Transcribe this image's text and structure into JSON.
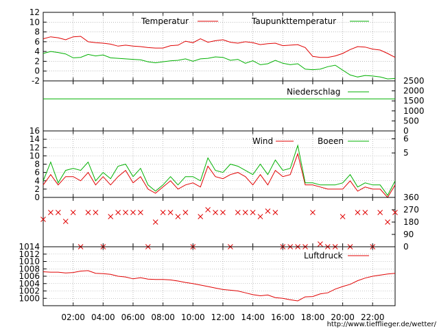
{
  "colors": {
    "red": "#e00000",
    "green": "#00b000",
    "grid": "#909090",
    "axis": "#000000"
  },
  "credit": "http://www.tiefflieger.de/wetter/",
  "time_ticks": [
    "02:00",
    "04:00",
    "06:00",
    "08:00",
    "10:00",
    "12:00",
    "14:00",
    "16:00",
    "18:00",
    "20:00",
    "22:00"
  ],
  "time_tick_hours": [
    2,
    4,
    6,
    8,
    10,
    12,
    14,
    16,
    18,
    20,
    22
  ],
  "time_range_hours": [
    0,
    23.5
  ],
  "chart_data": [
    {
      "type": "line",
      "id": "temperature",
      "ylim": [
        -2,
        12
      ],
      "yticks_left": [
        "12",
        "10",
        "8",
        "6",
        "4",
        "2",
        "0",
        "-2"
      ],
      "ytick_values_left": [
        12,
        10,
        8,
        6,
        4,
        2,
        0,
        -2
      ],
      "grid": true,
      "legend_position": "top-right",
      "x": [
        0,
        0.5,
        1,
        1.5,
        2,
        2.5,
        3,
        3.5,
        4,
        4.5,
        5,
        5.5,
        6,
        6.5,
        7,
        7.5,
        8,
        8.5,
        9,
        9.5,
        10,
        10.5,
        11,
        11.5,
        12,
        12.5,
        13,
        13.5,
        14,
        14.5,
        15,
        15.5,
        16,
        16.5,
        17,
        17.5,
        18,
        18.5,
        19,
        19.5,
        20,
        20.5,
        21,
        21.5,
        22,
        22.5,
        23,
        23.5
      ],
      "series": [
        {
          "name": "Temperatur",
          "color": "red",
          "values": [
            6.6,
            7.0,
            6.8,
            6.4,
            7.0,
            7.1,
            6.0,
            5.8,
            5.7,
            5.5,
            5.1,
            5.3,
            5.1,
            5.0,
            4.8,
            4.7,
            4.7,
            5.2,
            5.3,
            6.1,
            5.8,
            6.6,
            5.9,
            6.2,
            6.4,
            5.9,
            5.7,
            6.0,
            5.8,
            5.4,
            5.6,
            5.7,
            5.2,
            5.3,
            5.4,
            4.8,
            3.0,
            2.8,
            2.8,
            3.1,
            3.6,
            4.4,
            5.0,
            4.9,
            4.5,
            4.3,
            3.6,
            2.8
          ]
        },
        {
          "name": "Taupunkttemperatur",
          "color": "green",
          "values": [
            3.6,
            4.0,
            3.8,
            3.5,
            2.7,
            2.8,
            3.4,
            3.1,
            3.3,
            2.7,
            2.6,
            2.5,
            2.4,
            2.3,
            1.9,
            1.7,
            1.9,
            2.1,
            2.2,
            2.5,
            2.0,
            2.5,
            2.6,
            2.9,
            2.8,
            2.2,
            2.4,
            1.6,
            2.1,
            1.3,
            1.5,
            2.2,
            1.6,
            1.3,
            1.5,
            0.4,
            0.3,
            0.4,
            0.9,
            1.2,
            0.2,
            -0.8,
            -1.2,
            -0.9,
            -1.0,
            -1.2,
            -1.6,
            -1.5
          ]
        }
      ]
    },
    {
      "type": "line",
      "id": "precipitation",
      "ylim": [
        0,
        2500
      ],
      "yticks_right": [
        "2500",
        "2000",
        "1500",
        "1000",
        "500",
        "0"
      ],
      "ytick_values_right": [
        2500,
        2000,
        1500,
        1000,
        500,
        0
      ],
      "legend_position": "top-right",
      "x": [
        0,
        23.5
      ],
      "series": [
        {
          "name": "Niederschlag",
          "color": "green",
          "values": [
            1600,
            1600
          ]
        }
      ]
    },
    {
      "type": "line",
      "id": "wind",
      "ylim": [
        0,
        16
      ],
      "yticks_left": [
        "16",
        "14",
        "12",
        "10",
        "8",
        "6",
        "4",
        "2",
        "0"
      ],
      "ytick_values_left": [
        16,
        14,
        12,
        10,
        8,
        6,
        4,
        2,
        0
      ],
      "yticks_right": [
        "6",
        "5"
      ],
      "ytick_values_right": [
        14.1,
        10.7
      ],
      "grid": true,
      "legend_position": "top-right",
      "x": [
        0,
        0.5,
        1,
        1.5,
        2,
        2.5,
        3,
        3.5,
        4,
        4.5,
        5,
        5.5,
        6,
        6.5,
        7,
        7.5,
        8,
        8.5,
        9,
        9.5,
        10,
        10.5,
        11,
        11.5,
        12,
        12.5,
        13,
        13.5,
        14,
        14.5,
        15,
        15.5,
        16,
        16.5,
        17,
        17.5,
        18,
        18.5,
        19,
        19.5,
        20,
        20.5,
        21,
        21.5,
        22,
        22.5,
        23,
        23.5
      ],
      "series": [
        {
          "name": "Wind",
          "color": "red",
          "values": [
            3,
            5.5,
            3,
            5,
            5,
            4,
            6,
            3,
            5,
            3,
            5,
            6.5,
            3.5,
            5,
            2,
            1,
            2.5,
            4,
            2,
            3,
            3.5,
            2.5,
            7.5,
            5,
            4.5,
            5.5,
            6,
            5,
            3,
            5.5,
            3,
            6.5,
            5,
            5.5,
            10.5,
            3,
            3,
            2.5,
            2,
            2,
            2,
            4,
            1.5,
            2.5,
            2,
            2,
            0,
            3
          ]
        },
        {
          "name": "Boeen",
          "color": "green",
          "values": [
            4,
            8.5,
            3.5,
            6.5,
            7,
            6.5,
            8.5,
            4,
            6,
            4.5,
            7.5,
            8,
            5,
            7,
            3,
            1.5,
            3,
            5,
            3,
            5,
            5,
            4,
            9.5,
            6.5,
            6,
            8,
            7.5,
            6.5,
            5.5,
            8,
            5.5,
            9,
            6.5,
            7,
            12.5,
            3.5,
            3.5,
            3,
            3,
            3,
            3.5,
            5.5,
            2.5,
            3.5,
            3,
            3,
            0.5,
            4
          ]
        }
      ]
    },
    {
      "type": "scatter",
      "id": "wind-direction",
      "ylim": [
        0,
        360
      ],
      "yticks_right": [
        "360",
        "270",
        "180",
        "90",
        "0"
      ],
      "ytick_values_right": [
        360,
        270,
        180,
        90,
        0
      ],
      "x": [
        0,
        0.5,
        1,
        1.5,
        2,
        2.5,
        3,
        3.5,
        4,
        4.5,
        5,
        5.5,
        6,
        6.5,
        7,
        7.5,
        8,
        8.5,
        9,
        9.5,
        10,
        10.5,
        11,
        11.5,
        12,
        12.5,
        13,
        13.5,
        14,
        14.5,
        15,
        15.5,
        16,
        16.5,
        17,
        17.5,
        18,
        18.5,
        19,
        19.5,
        20,
        20.5,
        21,
        21.5,
        22,
        22.5,
        23,
        23.5
      ],
      "series": [
        {
          "color": "red",
          "values": [
            200,
            250,
            250,
            185,
            250,
            0,
            250,
            250,
            0,
            220,
            250,
            250,
            250,
            250,
            0,
            180,
            250,
            250,
            220,
            250,
            0,
            220,
            270,
            250,
            250,
            0,
            250,
            250,
            250,
            220,
            260,
            250,
            0,
            0,
            0,
            0,
            250,
            20,
            0,
            0,
            220,
            0,
            250,
            250,
            0,
            250,
            180,
            250
          ]
        }
      ]
    },
    {
      "type": "line",
      "id": "pressure",
      "ylim": [
        998,
        1014
      ],
      "yticks_left": [
        "1014",
        "1012",
        "1010",
        "1008",
        "1006",
        "1004",
        "1002",
        "1000"
      ],
      "ytick_values_left": [
        1014,
        1012,
        1010,
        1008,
        1006,
        1004,
        1002,
        1000
      ],
      "grid": true,
      "legend_position": "top-right",
      "x": [
        0,
        0.5,
        1,
        1.5,
        2,
        2.5,
        3,
        3.5,
        4,
        4.5,
        5,
        5.5,
        6,
        6.5,
        7,
        7.5,
        8,
        8.5,
        9,
        9.5,
        10,
        10.5,
        11,
        11.5,
        12,
        12.5,
        13,
        13.5,
        14,
        14.5,
        15,
        15.5,
        16,
        16.5,
        17,
        17.5,
        18,
        18.5,
        19,
        19.5,
        20,
        20.5,
        21,
        21.5,
        22,
        22.5,
        23,
        23.5
      ],
      "series": [
        {
          "name": "Luftdruck",
          "color": "red",
          "values": [
            1007.2,
            1007.1,
            1007.1,
            1006.9,
            1007.0,
            1007.4,
            1007.5,
            1006.8,
            1006.7,
            1006.5,
            1006.0,
            1005.8,
            1005.3,
            1005.6,
            1005.2,
            1005.1,
            1005.1,
            1005.0,
            1004.7,
            1004.3,
            1004.0,
            1003.6,
            1003.2,
            1002.8,
            1002.4,
            1002.2,
            1002.0,
            1001.5,
            1001.0,
            1000.7,
            1000.9,
            1000.2,
            1000.0,
            999.6,
            999.3,
            1000.4,
            1000.5,
            1001.2,
            1001.5,
            1002.5,
            1003.2,
            1003.8,
            1004.8,
            1005.5,
            1006.0,
            1006.3,
            1006.6,
            1006.8
          ]
        }
      ]
    }
  ]
}
